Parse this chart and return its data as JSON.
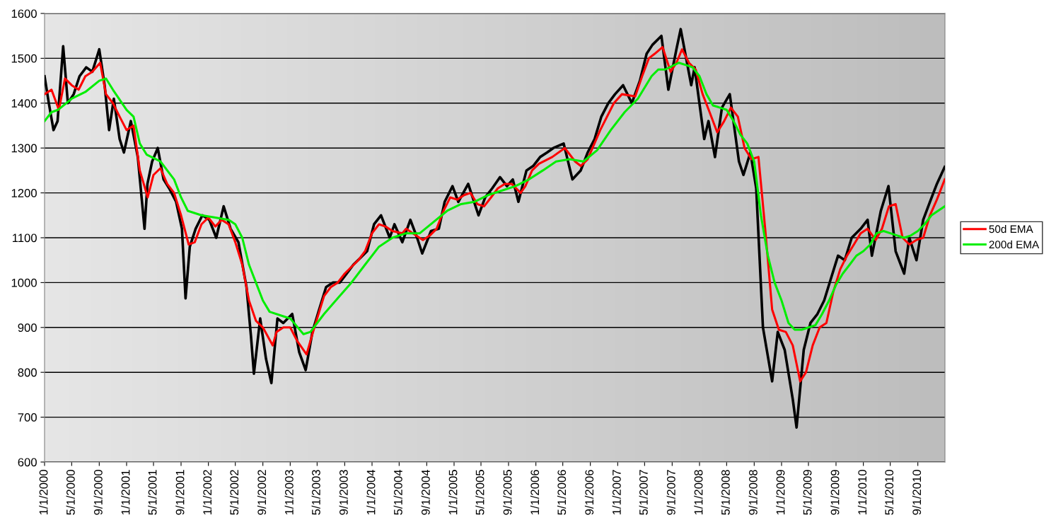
{
  "chart_data": {
    "type": "line",
    "xlim": [
      "2000-01-01",
      "2010-12-31"
    ],
    "ylim": [
      600,
      1600
    ],
    "yticks": [
      600,
      700,
      800,
      900,
      1000,
      1100,
      1200,
      1300,
      1400,
      1500,
      1600
    ],
    "xticks": [
      {
        "value": "2000-01-01",
        "label": "1/1/2000"
      },
      {
        "value": "2000-05-01",
        "label": "5/1/2000"
      },
      {
        "value": "2000-09-01",
        "label": "9/1/2000"
      },
      {
        "value": "2001-01-01",
        "label": "1/1/2001"
      },
      {
        "value": "2001-05-01",
        "label": "5/1/2001"
      },
      {
        "value": "2001-09-01",
        "label": "9/1/2001"
      },
      {
        "value": "2002-01-01",
        "label": "1/1/2002"
      },
      {
        "value": "2002-05-01",
        "label": "5/1/2002"
      },
      {
        "value": "2002-09-01",
        "label": "9/1/2002"
      },
      {
        "value": "2003-01-01",
        "label": "1/1/2003"
      },
      {
        "value": "2003-05-01",
        "label": "5/1/2003"
      },
      {
        "value": "2003-09-01",
        "label": "9/1/2003"
      },
      {
        "value": "2004-01-01",
        "label": "1/1/2004"
      },
      {
        "value": "2004-05-01",
        "label": "5/1/2004"
      },
      {
        "value": "2004-09-01",
        "label": "9/1/2004"
      },
      {
        "value": "2005-01-01",
        "label": "1/1/2005"
      },
      {
        "value": "2005-05-01",
        "label": "5/1/2005"
      },
      {
        "value": "2005-09-01",
        "label": "9/1/2005"
      },
      {
        "value": "2006-01-01",
        "label": "1/1/2006"
      },
      {
        "value": "2006-05-01",
        "label": "5/1/2006"
      },
      {
        "value": "2006-09-01",
        "label": "9/1/2006"
      },
      {
        "value": "2007-01-01",
        "label": "1/1/2007"
      },
      {
        "value": "2007-05-01",
        "label": "5/1/2007"
      },
      {
        "value": "2007-09-01",
        "label": "9/1/2007"
      },
      {
        "value": "2008-01-01",
        "label": "1/1/2008"
      },
      {
        "value": "2008-05-01",
        "label": "5/1/2008"
      },
      {
        "value": "2008-09-01",
        "label": "9/1/2008"
      },
      {
        "value": "2009-01-01",
        "label": "1/1/2009"
      },
      {
        "value": "2009-05-01",
        "label": "5/1/2009"
      },
      {
        "value": "2009-09-01",
        "label": "9/1/2009"
      },
      {
        "value": "2010-01-01",
        "label": "1/1/2010"
      },
      {
        "value": "2010-05-01",
        "label": "5/1/2010"
      },
      {
        "value": "2010-09-01",
        "label": "9/1/2010"
      }
    ],
    "grid": "y",
    "legend": "right",
    "series": [
      {
        "color": "#000000",
        "x": [
          "2000-01-01",
          "2000-01-20",
          "2000-02-10",
          "2000-02-28",
          "2000-03-24",
          "2000-04-14",
          "2000-05-10",
          "2000-06-05",
          "2000-07-05",
          "2000-08-01",
          "2000-09-01",
          "2000-09-25",
          "2000-10-15",
          "2000-11-05",
          "2000-12-01",
          "2000-12-20",
          "2001-01-20",
          "2001-02-20",
          "2001-03-22",
          "2001-04-04",
          "2001-04-25",
          "2001-05-20",
          "2001-06-15",
          "2001-07-10",
          "2001-08-10",
          "2001-09-05",
          "2001-09-21",
          "2001-10-10",
          "2001-11-05",
          "2001-12-05",
          "2002-01-05",
          "2002-02-05",
          "2002-03-10",
          "2002-04-10",
          "2002-05-15",
          "2002-06-20",
          "2002-07-10",
          "2002-07-23",
          "2002-08-20",
          "2002-09-15",
          "2002-10-09",
          "2002-11-05",
          "2002-12-01",
          "2003-01-10",
          "2003-02-10",
          "2003-03-11",
          "2003-04-10",
          "2003-05-10",
          "2003-06-10",
          "2003-07-10",
          "2003-08-10",
          "2003-09-10",
          "2003-10-10",
          "2003-11-10",
          "2003-12-10",
          "2004-01-10",
          "2004-02-10",
          "2004-03-20",
          "2004-04-10",
          "2004-05-15",
          "2004-06-20",
          "2004-07-20",
          "2004-08-12",
          "2004-09-20",
          "2004-10-25",
          "2004-11-20",
          "2004-12-25",
          "2005-01-20",
          "2005-03-05",
          "2005-04-20",
          "2005-05-20",
          "2005-06-20",
          "2005-07-25",
          "2005-08-25",
          "2005-09-20",
          "2005-10-15",
          "2005-11-20",
          "2005-12-20",
          "2006-01-20",
          "2006-02-20",
          "2006-03-20",
          "2006-05-05",
          "2006-06-13",
          "2006-07-20",
          "2006-08-20",
          "2006-09-20",
          "2006-10-20",
          "2006-11-20",
          "2006-12-20",
          "2007-01-25",
          "2007-03-05",
          "2007-04-10",
          "2007-05-10",
          "2007-06-05",
          "2007-07-15",
          "2007-08-15",
          "2007-09-20",
          "2007-10-09",
          "2007-11-25",
          "2007-12-10",
          "2008-01-22",
          "2008-02-10",
          "2008-03-10",
          "2008-04-10",
          "2008-05-15",
          "2008-06-25",
          "2008-07-15",
          "2008-08-15",
          "2008-09-10",
          "2008-10-10",
          "2008-11-20",
          "2008-12-15",
          "2009-01-15",
          "2009-02-20",
          "2009-03-09",
          "2009-04-10",
          "2009-05-10",
          "2009-06-10",
          "2009-07-10",
          "2009-08-10",
          "2009-09-10",
          "2009-10-10",
          "2009-11-10",
          "2009-12-20",
          "2010-01-20",
          "2010-02-08",
          "2010-03-20",
          "2010-04-23",
          "2010-05-25",
          "2010-07-02",
          "2010-07-25",
          "2010-08-26",
          "2010-09-25",
          "2010-10-25",
          "2010-11-25",
          "2010-12-30"
        ],
        "values": [
          1460,
          1400,
          1340,
          1360,
          1527,
          1400,
          1420,
          1460,
          1480,
          1470,
          1520,
          1440,
          1340,
          1410,
          1320,
          1290,
          1360,
          1280,
          1120,
          1220,
          1270,
          1300,
          1230,
          1210,
          1180,
          1120,
          965,
          1080,
          1120,
          1150,
          1140,
          1100,
          1170,
          1120,
          1090,
          990,
          880,
          797,
          920,
          830,
          776,
          920,
          910,
          930,
          845,
          805,
          890,
          940,
          990,
          1000,
          1000,
          1020,
          1040,
          1055,
          1070,
          1130,
          1150,
          1100,
          1130,
          1090,
          1140,
          1100,
          1065,
          1115,
          1120,
          1180,
          1215,
          1180,
          1220,
          1150,
          1190,
          1210,
          1235,
          1215,
          1230,
          1180,
          1250,
          1260,
          1280,
          1290,
          1300,
          1310,
          1230,
          1250,
          1290,
          1320,
          1370,
          1400,
          1420,
          1440,
          1400,
          1450,
          1510,
          1530,
          1550,
          1430,
          1520,
          1565,
          1440,
          1480,
          1320,
          1360,
          1280,
          1390,
          1420,
          1270,
          1240,
          1290,
          1210,
          900,
          780,
          890,
          850,
          740,
          677,
          850,
          910,
          930,
          960,
          1010,
          1060,
          1050,
          1100,
          1120,
          1140,
          1060,
          1160,
          1215,
          1070,
          1020,
          1100,
          1050,
          1140,
          1180,
          1220,
          1258
        ]
      },
      {
        "name": "50d EMA",
        "color": "#ff0000",
        "x": [
          "2000-01-01",
          "2000-02-01",
          "2000-03-05",
          "2000-04-01",
          "2000-05-01",
          "2000-06-01",
          "2000-07-01",
          "2000-08-01",
          "2000-09-05",
          "2000-10-01",
          "2000-11-01",
          "2000-12-01",
          "2001-01-01",
          "2001-02-01",
          "2001-03-01",
          "2001-04-05",
          "2001-05-01",
          "2001-06-01",
          "2001-07-01",
          "2001-08-01",
          "2001-09-01",
          "2001-10-05",
          "2001-11-01",
          "2001-12-01",
          "2002-01-01",
          "2002-02-01",
          "2002-03-01",
          "2002-04-01",
          "2002-05-01",
          "2002-06-01",
          "2002-07-01",
          "2002-08-01",
          "2002-09-01",
          "2002-10-15",
          "2002-11-01",
          "2002-12-01",
          "2003-01-01",
          "2003-02-01",
          "2003-03-15",
          "2003-04-01",
          "2003-05-01",
          "2003-06-01",
          "2003-07-01",
          "2003-08-01",
          "2003-09-01",
          "2003-10-01",
          "2003-11-01",
          "2003-12-01",
          "2004-01-01",
          "2004-02-01",
          "2004-03-01",
          "2004-04-01",
          "2004-05-15",
          "2004-06-01",
          "2004-07-01",
          "2004-08-15",
          "2004-09-15",
          "2004-10-15",
          "2004-11-15",
          "2004-12-15",
          "2005-01-15",
          "2005-02-15",
          "2005-03-15",
          "2005-04-15",
          "2005-05-15",
          "2005-06-15",
          "2005-07-15",
          "2005-08-15",
          "2005-09-15",
          "2005-10-25",
          "2005-11-15",
          "2005-12-15",
          "2006-01-15",
          "2006-03-15",
          "2006-05-10",
          "2006-06-25",
          "2006-07-20",
          "2006-08-20",
          "2006-10-15",
          "2006-12-15",
          "2007-01-20",
          "2007-03-20",
          "2007-04-20",
          "2007-05-20",
          "2007-06-15",
          "2007-07-20",
          "2007-08-25",
          "2007-09-20",
          "2007-10-15",
          "2007-11-15",
          "2007-12-15",
          "2008-01-15",
          "2008-02-15",
          "2008-03-20",
          "2008-04-20",
          "2008-05-20",
          "2008-06-20",
          "2008-07-20",
          "2008-08-20",
          "2008-09-20",
          "2008-10-20",
          "2008-11-20",
          "2008-12-20",
          "2009-01-20",
          "2009-02-20",
          "2009-03-25",
          "2009-04-20",
          "2009-05-20",
          "2009-06-20",
          "2009-07-20",
          "2009-08-20",
          "2009-09-20",
          "2009-10-20",
          "2009-11-20",
          "2009-12-20",
          "2010-01-20",
          "2010-02-25",
          "2010-03-25",
          "2010-04-25",
          "2010-05-25",
          "2010-06-25",
          "2010-07-25",
          "2010-08-25",
          "2010-09-25",
          "2010-10-25",
          "2010-11-25",
          "2010-12-30"
        ],
        "values": [
          1420,
          1430,
          1385,
          1455,
          1440,
          1430,
          1460,
          1470,
          1490,
          1420,
          1400,
          1370,
          1340,
          1350,
          1250,
          1190,
          1240,
          1255,
          1220,
          1200,
          1150,
          1085,
          1090,
          1130,
          1145,
          1125,
          1140,
          1130,
          1090,
          1040,
          960,
          915,
          900,
          860,
          890,
          900,
          900,
          870,
          840,
          870,
          920,
          970,
          990,
          1000,
          1020,
          1035,
          1050,
          1070,
          1110,
          1130,
          1125,
          1115,
          1110,
          1120,
          1110,
          1095,
          1105,
          1120,
          1160,
          1190,
          1185,
          1195,
          1200,
          1175,
          1170,
          1190,
          1210,
          1220,
          1220,
          1200,
          1215,
          1250,
          1265,
          1280,
          1300,
          1270,
          1260,
          1275,
          1340,
          1400,
          1420,
          1415,
          1460,
          1500,
          1510,
          1525,
          1470,
          1490,
          1520,
          1490,
          1475,
          1420,
          1380,
          1335,
          1360,
          1390,
          1370,
          1300,
          1275,
          1280,
          1120,
          940,
          895,
          890,
          860,
          780,
          800,
          860,
          900,
          910,
          980,
          1030,
          1060,
          1085,
          1110,
          1120,
          1095,
          1120,
          1170,
          1175,
          1100,
          1085,
          1095,
          1100,
          1150,
          1185,
          1230
        ]
      },
      {
        "name": "200d EMA",
        "color": "#00ee00",
        "x": [
          "2000-01-01",
          "2000-02-01",
          "2000-03-01",
          "2000-05-01",
          "2000-07-01",
          "2000-09-01",
          "2000-10-01",
          "2000-11-01",
          "2001-01-01",
          "2001-02-01",
          "2001-03-01",
          "2001-04-01",
          "2001-06-01",
          "2001-08-01",
          "2001-09-01",
          "2001-10-01",
          "2001-12-01",
          "2002-02-01",
          "2002-04-01",
          "2002-05-01",
          "2002-06-01",
          "2002-07-01",
          "2002-08-01",
          "2002-09-01",
          "2002-10-01",
          "2002-12-01",
          "2003-01-01",
          "2003-03-01",
          "2003-04-01",
          "2003-06-01",
          "2003-08-01",
          "2003-10-01",
          "2003-12-01",
          "2004-02-01",
          "2004-04-01",
          "2004-06-01",
          "2004-08-01",
          "2004-10-01",
          "2004-12-01",
          "2005-02-01",
          "2005-04-01",
          "2005-06-01",
          "2005-08-01",
          "2005-10-01",
          "2005-12-01",
          "2006-02-01",
          "2006-04-01",
          "2006-06-01",
          "2006-08-01",
          "2006-10-01",
          "2006-12-01",
          "2007-02-01",
          "2007-04-01",
          "2007-06-01",
          "2007-07-01",
          "2007-08-01",
          "2007-10-01",
          "2007-11-01",
          "2007-12-01",
          "2008-01-01",
          "2008-02-01",
          "2008-03-01",
          "2008-04-01",
          "2008-05-01",
          "2008-06-01",
          "2008-07-01",
          "2008-08-01",
          "2008-09-01",
          "2008-10-01",
          "2008-11-01",
          "2008-12-01",
          "2009-01-01",
          "2009-02-01",
          "2009-03-01",
          "2009-04-01",
          "2009-05-01",
          "2009-06-01",
          "2009-07-01",
          "2009-08-01",
          "2009-09-01",
          "2009-10-01",
          "2009-11-01",
          "2009-12-01",
          "2010-01-01",
          "2010-02-01",
          "2010-03-01",
          "2010-04-01",
          "2010-05-01",
          "2010-06-01",
          "2010-07-01",
          "2010-08-01",
          "2010-09-01",
          "2010-10-01",
          "2010-11-01",
          "2010-12-30"
        ],
        "values": [
          1360,
          1380,
          1385,
          1410,
          1425,
          1450,
          1455,
          1430,
          1385,
          1370,
          1310,
          1285,
          1270,
          1230,
          1190,
          1160,
          1150,
          1145,
          1140,
          1130,
          1100,
          1040,
          1000,
          960,
          935,
          925,
          920,
          885,
          890,
          930,
          965,
          1000,
          1040,
          1080,
          1100,
          1110,
          1110,
          1135,
          1160,
          1175,
          1180,
          1195,
          1205,
          1215,
          1230,
          1250,
          1270,
          1275,
          1270,
          1295,
          1340,
          1380,
          1410,
          1460,
          1475,
          1475,
          1490,
          1485,
          1480,
          1460,
          1420,
          1395,
          1390,
          1385,
          1360,
          1330,
          1310,
          1270,
          1150,
          1060,
          1000,
          960,
          910,
          895,
          895,
          900,
          905,
          930,
          960,
          995,
          1020,
          1040,
          1060,
          1070,
          1085,
          1110,
          1115,
          1110,
          1105,
          1100,
          1105,
          1115,
          1130,
          1150,
          1170
        ]
      }
    ]
  }
}
